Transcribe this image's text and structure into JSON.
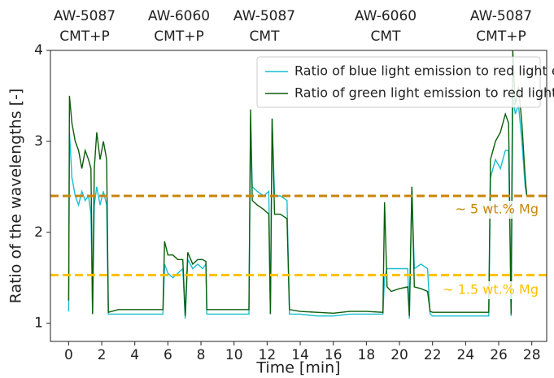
{
  "chart_data": {
    "type": "line",
    "x_label": "Time [min]",
    "y_label": "Ratio of the wavelengths [-]",
    "top_labels": [
      [
        "AW-5087",
        "CMT+P"
      ],
      [
        "AW-6060",
        "CMT+P"
      ],
      [
        "AW-5087",
        "CMT"
      ],
      [
        "AW-6060",
        "CMT"
      ],
      [
        "AW-5087",
        "CMT+P"
      ]
    ],
    "xlim": [
      -1.1,
      28.9
    ],
    "ylim": [
      0.8,
      4
    ],
    "xticks": [
      0,
      2,
      4,
      6,
      8,
      10,
      12,
      14,
      16,
      18,
      20,
      22,
      24,
      26,
      28
    ],
    "yticks": [
      1,
      2,
      3,
      4
    ],
    "legend": "upper right",
    "x": [
      0.0,
      0.05,
      0.2,
      0.4,
      0.6,
      0.8,
      1.0,
      1.2,
      1.35,
      1.45,
      1.55,
      1.7,
      1.9,
      2.1,
      2.3,
      2.4,
      3.0,
      4.0,
      5.0,
      5.7,
      5.8,
      6.0,
      6.3,
      6.6,
      6.9,
      7.05,
      7.2,
      7.5,
      7.8,
      8.1,
      8.3,
      8.35,
      9.0,
      10.0,
      10.9,
      11.0,
      11.1,
      11.4,
      11.8,
      12.1,
      12.2,
      12.3,
      12.45,
      12.8,
      13.2,
      13.35,
      14,
      15,
      16,
      17,
      18,
      19.0,
      19.1,
      19.25,
      19.5,
      20.0,
      20.5,
      20.6,
      20.75,
      20.9,
      21.3,
      21.7,
      21.85,
      22,
      23,
      24,
      25,
      25.4,
      25.5,
      25.8,
      26.1,
      26.4,
      26.6,
      26.75,
      26.85,
      27.0,
      27.2,
      27.4,
      27.6,
      27.7
    ],
    "series": [
      {
        "name": "Ratio of blue light emission to red light emission",
        "color": "#17becf",
        "values": [
          1.13,
          3.1,
          2.6,
          2.4,
          2.3,
          2.45,
          2.35,
          2.4,
          2.2,
          1.1,
          2.3,
          2.5,
          2.3,
          2.45,
          2.3,
          1.1,
          1.1,
          1.1,
          1.1,
          1.1,
          1.65,
          1.55,
          1.5,
          1.55,
          1.6,
          1.05,
          1.7,
          1.6,
          1.65,
          1.6,
          1.65,
          1.1,
          1.1,
          1.1,
          1.1,
          3.2,
          2.5,
          2.45,
          2.4,
          2.45,
          1.1,
          3.25,
          2.4,
          2.4,
          2.35,
          1.1,
          1.1,
          1.08,
          1.08,
          1.1,
          1.1,
          1.1,
          1.5,
          1.6,
          1.6,
          1.6,
          1.6,
          1.05,
          2.5,
          1.6,
          1.65,
          1.6,
          1.1,
          1.08,
          1.08,
          1.08,
          1.08,
          1.08,
          2.6,
          2.8,
          2.7,
          2.9,
          2.9,
          1.08,
          3.5,
          3.3,
          3.4,
          3.0,
          2.5,
          2.4
        ]
      },
      {
        "name": "Ratio of green light emission to red light emission",
        "color": "#0b5e0b",
        "values": [
          1.25,
          3.5,
          3.2,
          3.0,
          2.9,
          2.7,
          2.9,
          2.8,
          2.7,
          1.1,
          2.7,
          3.1,
          2.8,
          3.0,
          2.8,
          1.12,
          1.15,
          1.15,
          1.15,
          1.15,
          1.9,
          1.75,
          1.75,
          1.7,
          1.7,
          1.08,
          1.78,
          1.65,
          1.7,
          1.7,
          1.68,
          1.15,
          1.15,
          1.15,
          1.15,
          3.35,
          2.35,
          2.3,
          2.25,
          2.2,
          1.1,
          3.25,
          2.2,
          2.2,
          2.15,
          1.15,
          1.13,
          1.12,
          1.11,
          1.13,
          1.13,
          1.12,
          2.33,
          1.4,
          1.35,
          1.38,
          1.4,
          1.08,
          2.5,
          1.4,
          1.38,
          1.35,
          1.13,
          1.12,
          1.12,
          1.12,
          1.12,
          1.12,
          2.8,
          3.0,
          3.1,
          3.3,
          3.2,
          1.1,
          4.0,
          3.4,
          3.6,
          3.2,
          2.6,
          2.4
        ]
      }
    ],
    "reference_lines": [
      {
        "value": 2.4,
        "color": "#c8860a",
        "label": "~ 5 wt.% Mg"
      },
      {
        "value": 1.53,
        "color": "#ffc000",
        "label": "~ 1.5 wt.% Mg"
      }
    ]
  }
}
